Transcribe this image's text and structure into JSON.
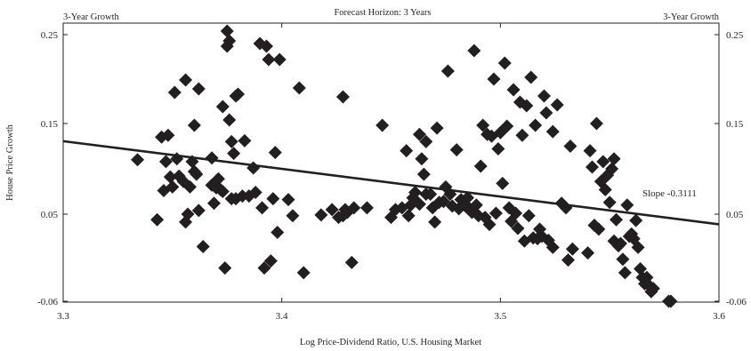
{
  "chart_data": {
    "type": "scatter",
    "title": "Forecast Horizon: 3 Years",
    "xlabel": "Log Price-Dividend Ratio, U.S. Housing Market",
    "ylabel": "House Price Growth",
    "corner_label_left": "3-Year Growth",
    "corner_label_right": "3-Year Growth",
    "xlim": [
      3.3,
      3.6
    ],
    "ylim": [
      -0.06,
      0.26
    ],
    "x_ticks": [
      3.3,
      3.4,
      3.5,
      3.6
    ],
    "y_ticks": [
      -0.06,
      0.05,
      0.15,
      0.25
    ],
    "x_tick_labels": [
      "3.3",
      "3.4",
      "3.5",
      "3.6"
    ],
    "y_tick_labels": [
      "-0.06",
      "0.05",
      "0.15",
      "0.25"
    ],
    "grid": false,
    "marker": "diamond",
    "marker_color": "#231f20",
    "trend_line": {
      "x": [
        3.3,
        3.6
      ],
      "y": [
        0.1305,
        0.0372
      ],
      "label": "Slope -0.3111"
    },
    "points": [
      [
        3.334,
        0.11
      ],
      [
        3.343,
        0.043
      ],
      [
        3.345,
        0.135
      ],
      [
        3.347,
        0.108
      ],
      [
        3.346,
        0.076
      ],
      [
        3.348,
        0.137
      ],
      [
        3.349,
        0.091
      ],
      [
        3.35,
        0.08
      ],
      [
        3.351,
        0.185
      ],
      [
        3.352,
        0.111
      ],
      [
        3.353,
        0.092
      ],
      [
        3.355,
        0.086
      ],
      [
        3.356,
        0.199
      ],
      [
        3.356,
        0.04
      ],
      [
        3.357,
        0.05
      ],
      [
        3.358,
        0.08
      ],
      [
        3.359,
        0.108
      ],
      [
        3.36,
        0.097
      ],
      [
        3.36,
        0.148
      ],
      [
        3.361,
        0.094
      ],
      [
        3.362,
        0.189
      ],
      [
        3.362,
        0.054
      ],
      [
        3.364,
        0.009
      ],
      [
        3.368,
        0.082
      ],
      [
        3.368,
        0.112
      ],
      [
        3.369,
        0.062
      ],
      [
        3.37,
        0.079
      ],
      [
        3.371,
        0.089
      ],
      [
        3.372,
        0.077
      ],
      [
        3.373,
        0.169
      ],
      [
        3.373,
        0.075
      ],
      [
        3.374,
        -0.018
      ],
      [
        3.375,
        0.254
      ],
      [
        3.375,
        0.237
      ],
      [
        3.376,
        0.243
      ],
      [
        3.376,
        0.154
      ],
      [
        3.377,
        0.067
      ],
      [
        3.377,
        0.13
      ],
      [
        3.378,
        0.117
      ],
      [
        3.379,
        0.181
      ],
      [
        3.379,
        0.067
      ],
      [
        3.38,
        0.183
      ],
      [
        3.382,
        0.07
      ],
      [
        3.383,
        0.131
      ],
      [
        3.385,
        0.07
      ],
      [
        3.387,
        0.101
      ],
      [
        3.388,
        0.074
      ],
      [
        3.39,
        0.24
      ],
      [
        3.391,
        0.057
      ],
      [
        3.392,
        -0.018
      ],
      [
        3.393,
        0.237
      ],
      [
        3.394,
        0.222
      ],
      [
        3.395,
        -0.009
      ],
      [
        3.396,
        0.067
      ],
      [
        3.397,
        0.118
      ],
      [
        3.398,
        0.027
      ],
      [
        3.399,
        0.222
      ],
      [
        3.403,
        0.066
      ],
      [
        3.405,
        0.048
      ],
      [
        3.408,
        0.19
      ],
      [
        3.41,
        -0.024
      ],
      [
        3.418,
        0.049
      ],
      [
        3.423,
        0.055
      ],
      [
        3.426,
        0.046
      ],
      [
        3.428,
        0.18
      ],
      [
        3.428,
        0.048
      ],
      [
        3.429,
        0.055
      ],
      [
        3.43,
        0.052
      ],
      [
        3.432,
        -0.011
      ],
      [
        3.433,
        0.057
      ],
      [
        3.439,
        0.057
      ],
      [
        3.446,
        0.148
      ],
      [
        3.45,
        0.046
      ],
      [
        3.452,
        0.055
      ],
      [
        3.455,
        0.057
      ],
      [
        3.457,
        0.12
      ],
      [
        3.458,
        0.048
      ],
      [
        3.459,
        0.06
      ],
      [
        3.46,
        0.068
      ],
      [
        3.461,
        0.074
      ],
      [
        3.463,
        0.061
      ],
      [
        3.463,
        0.138
      ],
      [
        3.464,
        0.111
      ],
      [
        3.465,
        0.094
      ],
      [
        3.466,
        0.072
      ],
      [
        3.466,
        0.13
      ],
      [
        3.468,
        0.072
      ],
      [
        3.469,
        0.057
      ],
      [
        3.47,
        0.04
      ],
      [
        3.471,
        0.145
      ],
      [
        3.472,
        0.063
      ],
      [
        3.474,
        0.064
      ],
      [
        3.475,
        0.08
      ],
      [
        3.476,
        0.209
      ],
      [
        3.477,
        0.072
      ],
      [
        3.478,
        0.059
      ],
      [
        3.48,
        0.121
      ],
      [
        3.481,
        0.056
      ],
      [
        3.482,
        0.066
      ],
      [
        3.483,
        0.064
      ],
      [
        3.484,
        0.059
      ],
      [
        3.485,
        0.068
      ],
      [
        3.486,
        0.056
      ],
      [
        3.487,
        0.052
      ],
      [
        3.488,
        0.232
      ],
      [
        3.489,
        0.06
      ],
      [
        3.49,
        0.048
      ],
      [
        3.491,
        0.103
      ],
      [
        3.492,
        0.148
      ],
      [
        3.493,
        0.046
      ],
      [
        3.494,
        0.138
      ],
      [
        3.495,
        0.037
      ],
      [
        3.496,
        0.136
      ],
      [
        3.497,
        0.2
      ],
      [
        3.498,
        0.051
      ],
      [
        3.499,
        0.122
      ],
      [
        3.5,
        0.14
      ],
      [
        3.501,
        0.084
      ],
      [
        3.502,
        0.218
      ],
      [
        3.503,
        0.147
      ],
      [
        3.504,
        0.057
      ],
      [
        3.505,
        0.041
      ],
      [
        3.506,
        0.188
      ],
      [
        3.507,
        0.051
      ],
      [
        3.508,
        0.032
      ],
      [
        3.509,
        0.174
      ],
      [
        3.51,
        0.137
      ],
      [
        3.511,
        0.016
      ],
      [
        3.512,
        0.17
      ],
      [
        3.513,
        0.048
      ],
      [
        3.514,
        0.202
      ],
      [
        3.515,
        0.02
      ],
      [
        3.516,
        0.148
      ],
      [
        3.517,
        0.019
      ],
      [
        3.518,
        0.031
      ],
      [
        3.519,
        0.022
      ],
      [
        3.52,
        0.181
      ],
      [
        3.521,
        0.162
      ],
      [
        3.522,
        0.017
      ],
      [
        3.524,
        0.141
      ],
      [
        3.524,
        0.008
      ],
      [
        3.526,
        0.171
      ],
      [
        3.528,
        0.062
      ],
      [
        3.53,
        0.057
      ],
      [
        3.531,
        -0.008
      ],
      [
        3.532,
        0.125
      ],
      [
        3.533,
        0.006
      ],
      [
        3.54,
        0.001
      ],
      [
        3.541,
        0.12
      ],
      [
        3.542,
        0.102
      ],
      [
        3.543,
        0.036
      ],
      [
        3.544,
        0.15
      ],
      [
        3.545,
        0.031
      ],
      [
        3.546,
        0.086
      ],
      [
        3.547,
        0.108
      ],
      [
        3.548,
        0.077
      ],
      [
        3.549,
        0.093
      ],
      [
        3.55,
        0.063
      ],
      [
        3.551,
        0.1
      ],
      [
        3.552,
        0.016
      ],
      [
        3.552,
        0.111
      ],
      [
        3.553,
        0.043
      ],
      [
        3.554,
        0.01
      ],
      [
        3.555,
        0.013
      ],
      [
        3.556,
        -0.007
      ],
      [
        3.557,
        -0.024
      ],
      [
        3.558,
        0.06
      ],
      [
        3.559,
        0.022
      ],
      [
        3.56,
        0.025
      ],
      [
        3.561,
        0.019
      ],
      [
        3.562,
        0.042
      ],
      [
        3.563,
        0.008
      ],
      [
        3.564,
        -0.019
      ],
      [
        3.565,
        -0.03
      ],
      [
        3.566,
        -0.038
      ],
      [
        3.567,
        -0.03
      ],
      [
        3.568,
        -0.04
      ],
      [
        3.569,
        -0.048
      ],
      [
        3.57,
        -0.044
      ],
      [
        3.577,
        -0.06
      ],
      [
        3.578,
        -0.06
      ]
    ]
  }
}
